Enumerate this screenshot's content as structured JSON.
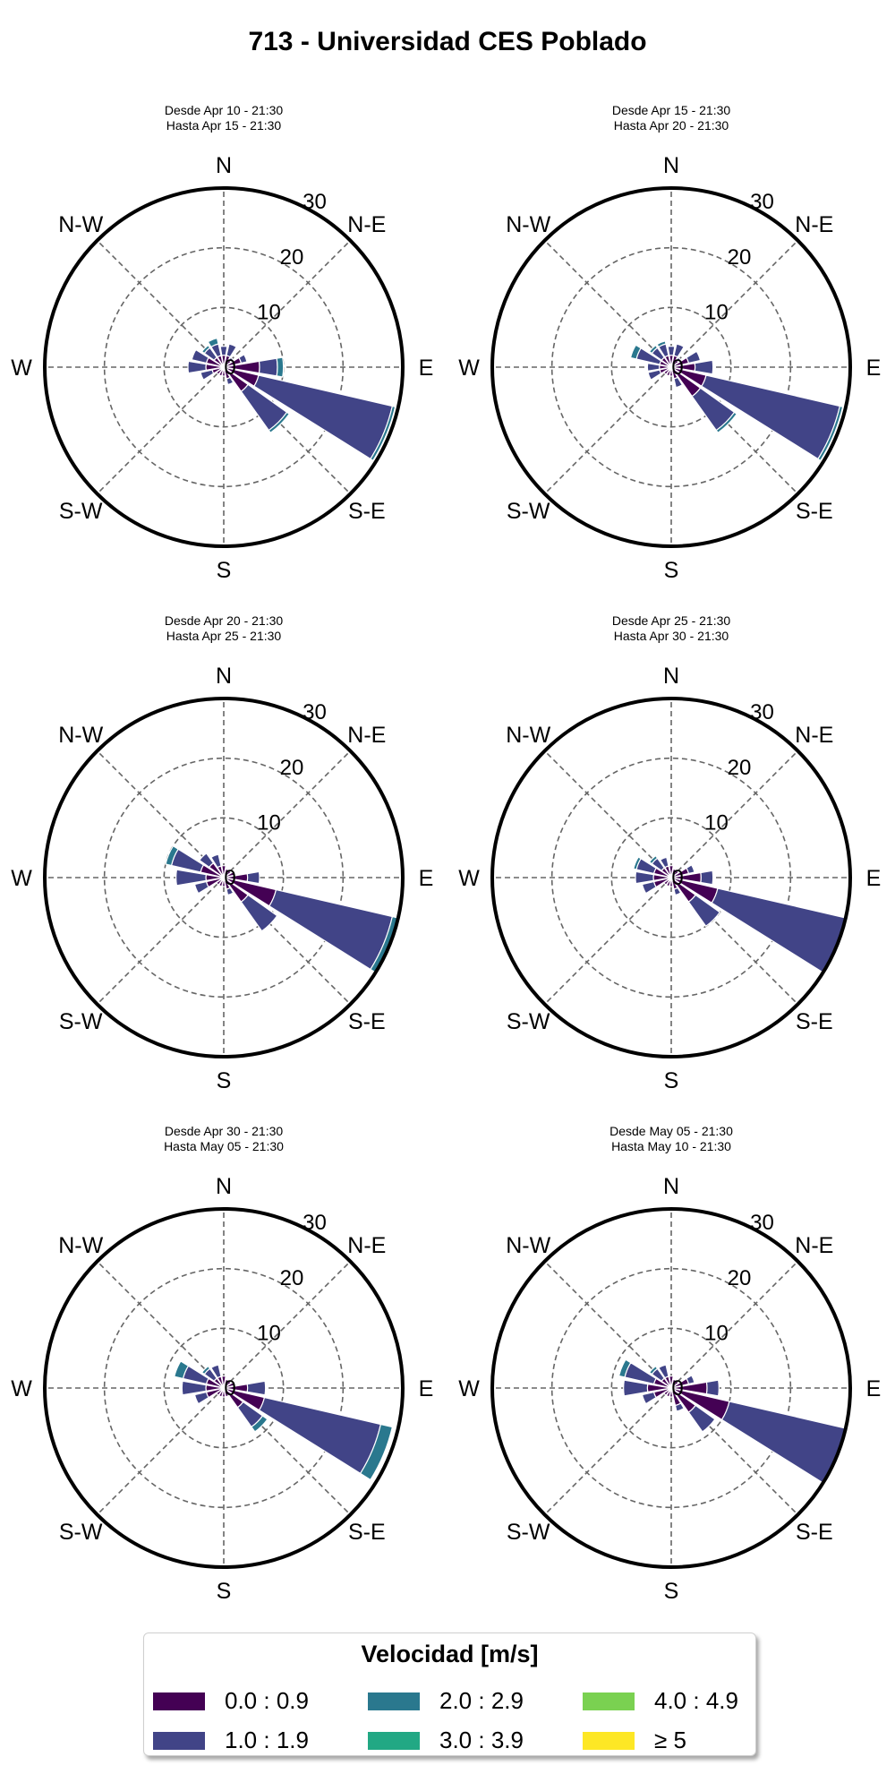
{
  "title": "713 - Universidad CES Poblado",
  "legend": {
    "title": "Velocidad [m/s]",
    "items": [
      {
        "label": "0.0 : 0.9",
        "color": "#440154"
      },
      {
        "label": "1.0 : 1.9",
        "color": "#414487"
      },
      {
        "label": "2.0 : 2.9",
        "color": "#2a788e"
      },
      {
        "label": "3.0 : 3.9",
        "color": "#22a884"
      },
      {
        "label": "4.0 : 4.9",
        "color": "#7ad151"
      },
      {
        "label": "≥ 5",
        "color": "#fde725"
      }
    ]
  },
  "chart_data": [
    {
      "type": "windrose",
      "subtitle_line1": "Desde Apr 10 - 21:30",
      "subtitle_line2": "Hasta Apr 15 - 21:30",
      "direction_labels": [
        "N",
        "N-E",
        "E",
        "S-E",
        "S",
        "S-W",
        "W",
        "N-W"
      ],
      "radial_ticks": [
        "0",
        "10",
        "20",
        "30"
      ],
      "rmax": 30,
      "bins": [
        {
          "dir": 0,
          "stacks": [
            2,
            1.5
          ]
        },
        {
          "dir": 22.5,
          "stacks": [
            2,
            2
          ]
        },
        {
          "dir": 45,
          "stacks": [
            1.5,
            0.5
          ]
        },
        {
          "dir": 67.5,
          "stacks": [
            3,
            1
          ]
        },
        {
          "dir": 90,
          "stacks": [
            6,
            3,
            1
          ]
        },
        {
          "dir": 112.5,
          "stacks": [
            6,
            23,
            0.5
          ]
        },
        {
          "dir": 135,
          "stacks": [
            5,
            8,
            0.5
          ]
        },
        {
          "dir": 157.5,
          "stacks": [
            2,
            1
          ]
        },
        {
          "dir": 180,
          "stacks": [
            1.5
          ]
        },
        {
          "dir": 202.5,
          "stacks": [
            1.5
          ]
        },
        {
          "dir": 225,
          "stacks": [
            1.5
          ]
        },
        {
          "dir": 247.5,
          "stacks": [
            2,
            2
          ]
        },
        {
          "dir": 270,
          "stacks": [
            3,
            3
          ]
        },
        {
          "dir": 292.5,
          "stacks": [
            3,
            2.5
          ]
        },
        {
          "dir": 315,
          "stacks": [
            2,
            2,
            0.5
          ]
        },
        {
          "dir": 337.5,
          "stacks": [
            2,
            2,
            1
          ]
        }
      ]
    },
    {
      "type": "windrose",
      "subtitle_line1": "Desde Apr 15 - 21:30",
      "subtitle_line2": "Hasta Apr 20 - 21:30",
      "direction_labels": [
        "N",
        "N-E",
        "E",
        "S-E",
        "S",
        "S-W",
        "W",
        "N-W"
      ],
      "radial_ticks": [
        "0",
        "10",
        "20",
        "30"
      ],
      "rmax": 30,
      "bins": [
        {
          "dir": 0,
          "stacks": [
            2,
            1.5
          ]
        },
        {
          "dir": 22.5,
          "stacks": [
            2,
            2
          ]
        },
        {
          "dir": 45,
          "stacks": [
            1.5,
            0.5
          ]
        },
        {
          "dir": 67.5,
          "stacks": [
            3,
            2
          ]
        },
        {
          "dir": 90,
          "stacks": [
            4,
            3
          ]
        },
        {
          "dir": 112.5,
          "stacks": [
            6,
            23,
            0.5
          ]
        },
        {
          "dir": 135,
          "stacks": [
            6,
            7,
            0.5
          ]
        },
        {
          "dir": 157.5,
          "stacks": [
            2,
            1.5
          ]
        },
        {
          "dir": 180,
          "stacks": [
            1.5
          ]
        },
        {
          "dir": 202.5,
          "stacks": [
            1.5
          ]
        },
        {
          "dir": 225,
          "stacks": [
            1.5
          ]
        },
        {
          "dir": 247.5,
          "stacks": [
            2,
            2
          ]
        },
        {
          "dir": 270,
          "stacks": [
            2,
            2
          ]
        },
        {
          "dir": 292.5,
          "stacks": [
            2,
            4,
            1
          ]
        },
        {
          "dir": 315,
          "stacks": [
            2,
            2,
            0.5
          ]
        },
        {
          "dir": 337.5,
          "stacks": [
            2,
            2,
            0.5
          ]
        }
      ]
    },
    {
      "type": "windrose",
      "subtitle_line1": "Desde Apr 20 - 21:30",
      "subtitle_line2": "Hasta Apr 25 - 21:30",
      "direction_labels": [
        "N",
        "N-E",
        "E",
        "S-E",
        "S",
        "S-W",
        "W",
        "N-W"
      ],
      "radial_ticks": [
        "0",
        "10",
        "20",
        "30"
      ],
      "rmax": 30,
      "bins": [
        {
          "dir": 0,
          "stacks": [
            2
          ]
        },
        {
          "dir": 22.5,
          "stacks": [
            1.5
          ]
        },
        {
          "dir": 45,
          "stacks": [
            1.5
          ]
        },
        {
          "dir": 67.5,
          "stacks": [
            2
          ]
        },
        {
          "dir": 90,
          "stacks": [
            4,
            2
          ]
        },
        {
          "dir": 112.5,
          "stacks": [
            9,
            20,
            1
          ]
        },
        {
          "dir": 135,
          "stacks": [
            5,
            6
          ]
        },
        {
          "dir": 157.5,
          "stacks": [
            2,
            1
          ]
        },
        {
          "dir": 180,
          "stacks": [
            1.5
          ]
        },
        {
          "dir": 202.5,
          "stacks": [
            1.5
          ]
        },
        {
          "dir": 225,
          "stacks": [
            1.5
          ]
        },
        {
          "dir": 247.5,
          "stacks": [
            3,
            2
          ]
        },
        {
          "dir": 270,
          "stacks": [
            3,
            5
          ]
        },
        {
          "dir": 292.5,
          "stacks": [
            4,
            5,
            1
          ]
        },
        {
          "dir": 315,
          "stacks": [
            3,
            2
          ]
        },
        {
          "dir": 337.5,
          "stacks": [
            2,
            2
          ]
        }
      ]
    },
    {
      "type": "windrose",
      "subtitle_line1": "Desde Apr 25 - 21:30",
      "subtitle_line2": "Hasta Apr 30 - 21:30",
      "direction_labels": [
        "N",
        "N-E",
        "E",
        "S-E",
        "S",
        "S-W",
        "W",
        "N-W"
      ],
      "radial_ticks": [
        "0",
        "10",
        "20",
        "30"
      ],
      "rmax": 30,
      "bins": [
        {
          "dir": 0,
          "stacks": [
            2
          ]
        },
        {
          "dir": 22.5,
          "stacks": [
            1.5
          ]
        },
        {
          "dir": 45,
          "stacks": [
            1.5
          ]
        },
        {
          "dir": 67.5,
          "stacks": [
            3,
            1
          ]
        },
        {
          "dir": 90,
          "stacks": [
            5,
            2
          ]
        },
        {
          "dir": 112.5,
          "stacks": [
            8,
            22
          ]
        },
        {
          "dir": 135,
          "stacks": [
            5,
            5
          ]
        },
        {
          "dir": 157.5,
          "stacks": [
            2,
            1
          ]
        },
        {
          "dir": 180,
          "stacks": [
            1.5
          ]
        },
        {
          "dir": 202.5,
          "stacks": [
            1.5
          ]
        },
        {
          "dir": 225,
          "stacks": [
            1.5
          ]
        },
        {
          "dir": 247.5,
          "stacks": [
            3,
            2
          ]
        },
        {
          "dir": 270,
          "stacks": [
            3,
            3
          ]
        },
        {
          "dir": 292.5,
          "stacks": [
            3,
            3,
            0.5
          ]
        },
        {
          "dir": 315,
          "stacks": [
            2,
            2,
            0.5
          ]
        },
        {
          "dir": 337.5,
          "stacks": [
            2,
            1.5
          ]
        }
      ]
    },
    {
      "type": "windrose",
      "subtitle_line1": "Desde Apr 30 - 21:30",
      "subtitle_line2": "Hasta May 05 - 21:30",
      "direction_labels": [
        "N",
        "N-E",
        "E",
        "S-E",
        "S",
        "S-W",
        "W",
        "N-W"
      ],
      "radial_ticks": [
        "0",
        "10",
        "20",
        "30"
      ],
      "rmax": 30,
      "bins": [
        {
          "dir": 0,
          "stacks": [
            2
          ]
        },
        {
          "dir": 22.5,
          "stacks": [
            1.5
          ]
        },
        {
          "dir": 45,
          "stacks": [
            1.5
          ]
        },
        {
          "dir": 67.5,
          "stacks": [
            2
          ]
        },
        {
          "dir": 90,
          "stacks": [
            4,
            3
          ]
        },
        {
          "dir": 112.5,
          "stacks": [
            7,
            20,
            2
          ]
        },
        {
          "dir": 135,
          "stacks": [
            4,
            4,
            1
          ]
        },
        {
          "dir": 157.5,
          "stacks": [
            1.5
          ]
        },
        {
          "dir": 180,
          "stacks": [
            1.5
          ]
        },
        {
          "dir": 202.5,
          "stacks": [
            1.5
          ]
        },
        {
          "dir": 225,
          "stacks": [
            1.5
          ]
        },
        {
          "dir": 247.5,
          "stacks": [
            3,
            2
          ]
        },
        {
          "dir": 270,
          "stacks": [
            3,
            4
          ]
        },
        {
          "dir": 292.5,
          "stacks": [
            3,
            4,
            1.5
          ]
        },
        {
          "dir": 315,
          "stacks": [
            2,
            2,
            0.5
          ]
        },
        {
          "dir": 337.5,
          "stacks": [
            2,
            2
          ]
        }
      ]
    },
    {
      "type": "windrose",
      "subtitle_line1": "Desde May 05 - 21:30",
      "subtitle_line2": "Hasta May 10 - 21:30",
      "direction_labels": [
        "N",
        "N-E",
        "E",
        "S-E",
        "S",
        "S-W",
        "W",
        "N-W"
      ],
      "radial_ticks": [
        "0",
        "10",
        "20",
        "30"
      ],
      "rmax": 30,
      "bins": [
        {
          "dir": 0,
          "stacks": [
            2
          ]
        },
        {
          "dir": 22.5,
          "stacks": [
            1.5
          ]
        },
        {
          "dir": 45,
          "stacks": [
            1.5
          ]
        },
        {
          "dir": 67.5,
          "stacks": [
            3,
            1
          ]
        },
        {
          "dir": 90,
          "stacks": [
            6,
            2
          ]
        },
        {
          "dir": 112.5,
          "stacks": [
            10,
            20
          ]
        },
        {
          "dir": 135,
          "stacks": [
            5,
            4
          ]
        },
        {
          "dir": 157.5,
          "stacks": [
            3,
            1
          ]
        },
        {
          "dir": 180,
          "stacks": [
            1.5
          ]
        },
        {
          "dir": 202.5,
          "stacks": [
            1.5
          ]
        },
        {
          "dir": 225,
          "stacks": [
            1.5
          ]
        },
        {
          "dir": 247.5,
          "stacks": [
            3,
            2
          ]
        },
        {
          "dir": 270,
          "stacks": [
            4,
            4
          ]
        },
        {
          "dir": 292.5,
          "stacks": [
            3,
            5,
            1
          ]
        },
        {
          "dir": 315,
          "stacks": [
            2,
            2,
            0.5
          ]
        },
        {
          "dir": 337.5,
          "stacks": [
            2,
            2
          ]
        }
      ]
    }
  ]
}
